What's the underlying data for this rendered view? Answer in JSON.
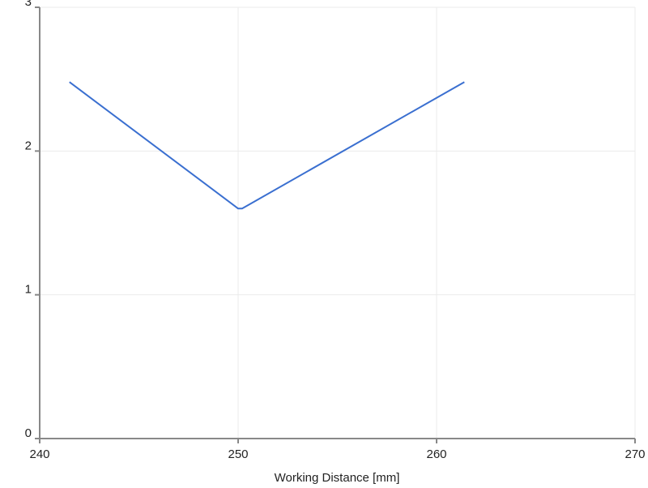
{
  "chart_data": {
    "type": "line",
    "xlabel": "Working Distance [mm]",
    "x": [
      241.5,
      250,
      250.2,
      261.4
    ],
    "values": [
      2.48,
      1.6,
      1.6,
      2.48
    ],
    "color": "#3a6fd0",
    "xlim": [
      240,
      270
    ],
    "xticks": [
      240,
      250,
      260,
      270
    ],
    "ylim": [
      0,
      3
    ],
    "yticks": [
      0,
      1,
      2,
      3
    ],
    "grid": true
  }
}
